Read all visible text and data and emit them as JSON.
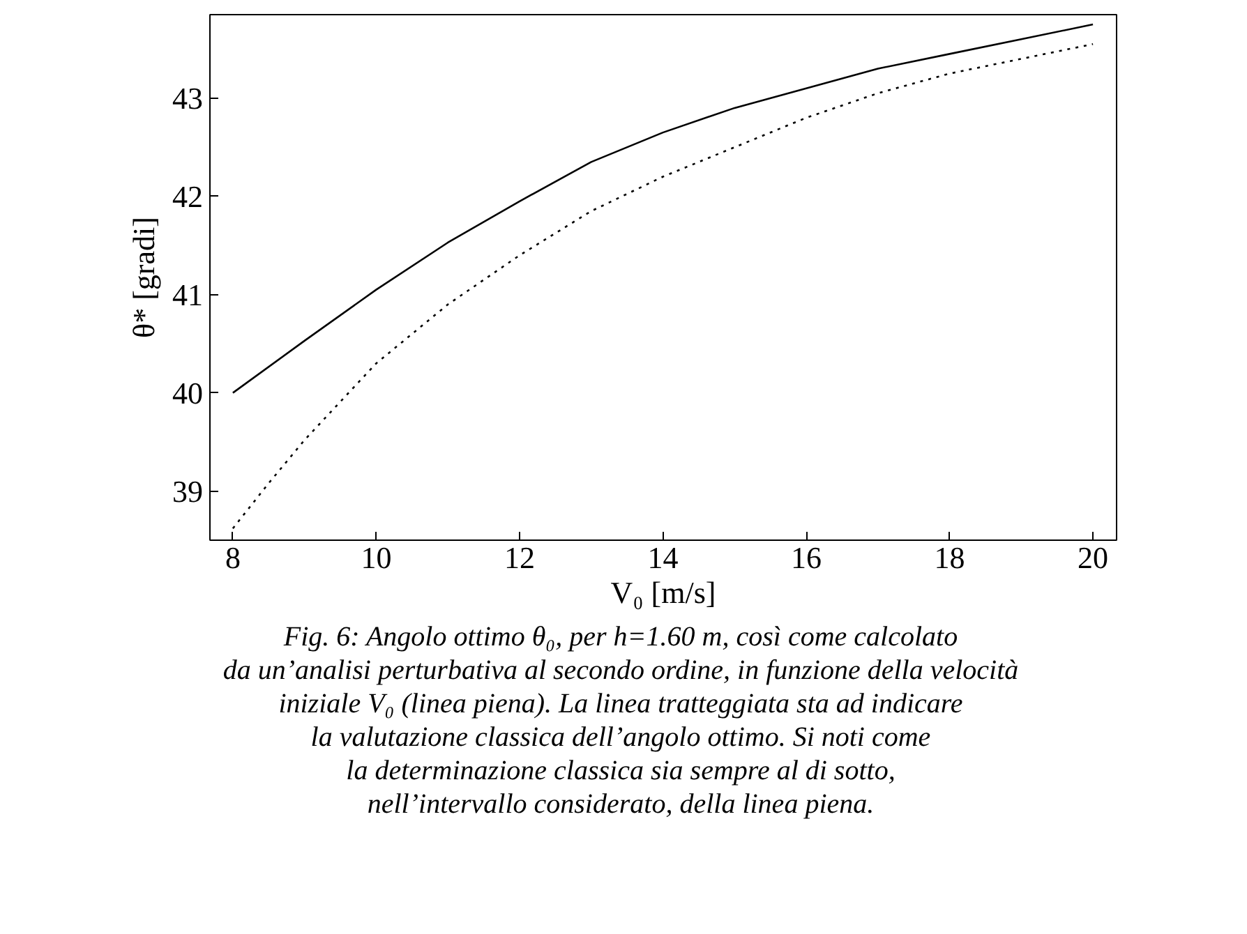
{
  "chart_data": {
    "type": "line",
    "xlabel": "V₀ [m/s]",
    "ylabel": "θ* [gradi]",
    "xlim": [
      7.68,
      20.33
    ],
    "ylim": [
      38.5,
      43.85
    ],
    "xticks": [
      8,
      10,
      12,
      14,
      16,
      18,
      20
    ],
    "yticks": [
      39,
      40,
      41,
      42,
      43
    ],
    "grid": false,
    "series": [
      {
        "color": "#000000",
        "line_style": "solid",
        "x": [
          8,
          9,
          10,
          11,
          12,
          13,
          14,
          15,
          16,
          17,
          18,
          19,
          20
        ],
        "values": [
          40.0,
          40.53,
          41.05,
          41.53,
          41.95,
          42.35,
          42.65,
          42.9,
          43.1,
          43.3,
          43.45,
          43.6,
          43.75
        ]
      },
      {
        "color": "#000000",
        "line_style": "dotted",
        "x": [
          8,
          8.5,
          9,
          10,
          11,
          12,
          13,
          14,
          15,
          16,
          17,
          18,
          19,
          20
        ],
        "values": [
          38.62,
          39.08,
          39.52,
          40.3,
          40.9,
          41.4,
          41.85,
          42.2,
          42.5,
          42.8,
          43.05,
          43.25,
          43.4,
          43.55
        ]
      }
    ],
    "annotations": [
      "Fig. 6: Angolo ottimo θ₀, per h=1.60 m, così come calcolato\nda un’analisi perturbativa al secondo ordine, in funzione della velocità\niniziale V₀ (linea piena). La linea tratteggiata sta ad indicare\nla valutazione classica dell’angolo ottimo. Si noti come\nla determinazione classica sia sempre al di sotto,\nnell’intervallo considerato, della linea piena."
    ]
  }
}
